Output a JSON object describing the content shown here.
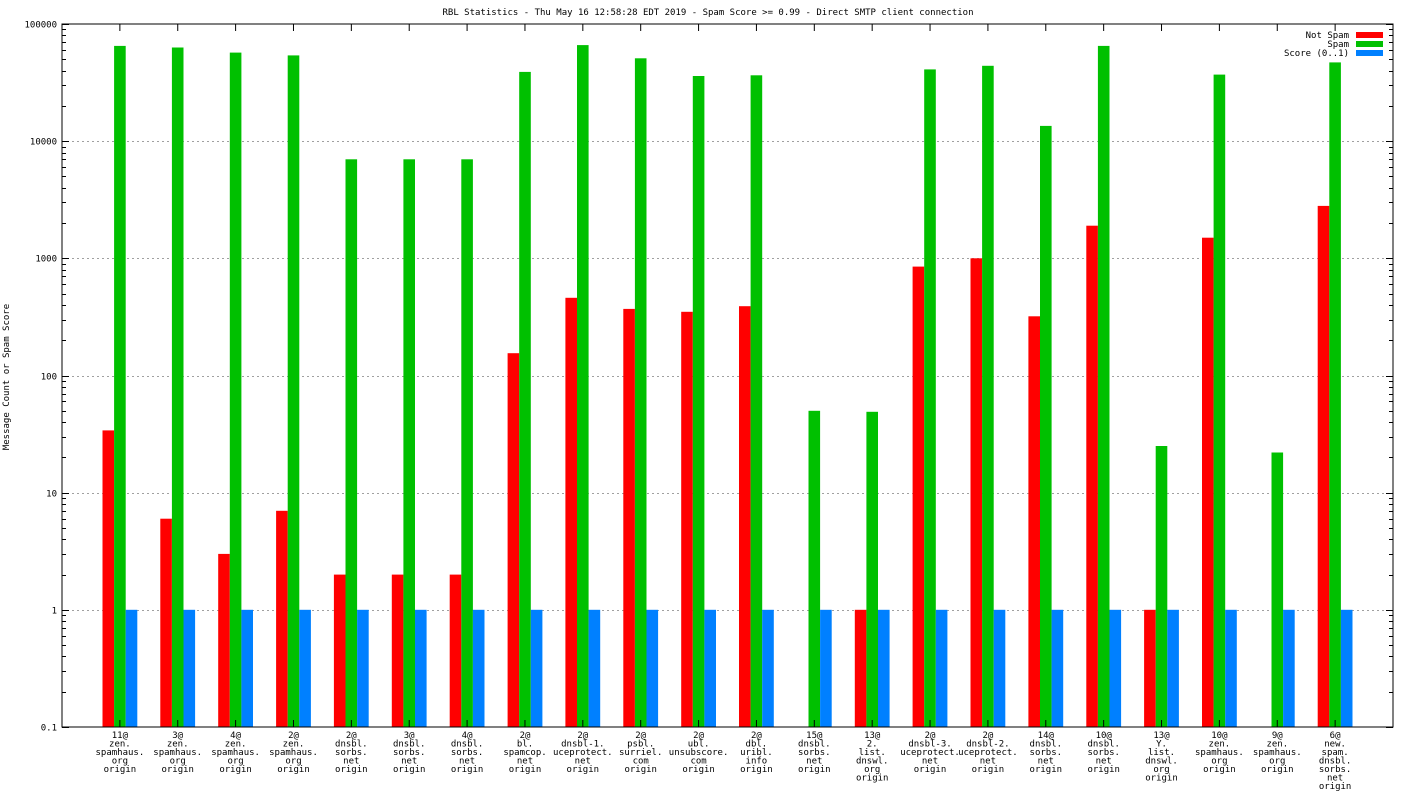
{
  "chart_data": {
    "type": "bar",
    "title": "RBL Statistics - Thu May 16 12:58:28 EDT 2019 - Spam Score >= 0.99 - Direct SMTP client connection",
    "ylabel": "Message Count or Spam Score",
    "xlabel": "",
    "yscale": "log",
    "ylim": [
      0.1,
      100000
    ],
    "yticks": [
      "0.1",
      "1",
      "10",
      "100",
      "1000",
      "10000",
      "100000"
    ],
    "grid": true,
    "legend_position": "top-right",
    "categories": [
      [
        "11@",
        "zen.",
        "spamhaus.",
        "org",
        "origin"
      ],
      [
        "3@",
        "zen.",
        "spamhaus.",
        "org",
        "origin"
      ],
      [
        "4@",
        "zen.",
        "spamhaus.",
        "org",
        "origin"
      ],
      [
        "2@",
        "zen.",
        "spamhaus.",
        "org",
        "origin"
      ],
      [
        "2@",
        "dnsbl.",
        "sorbs.",
        "net",
        "origin"
      ],
      [
        "3@",
        "dnsbl.",
        "sorbs.",
        "net",
        "origin"
      ],
      [
        "4@",
        "dnsbl.",
        "sorbs.",
        "net",
        "origin"
      ],
      [
        "2@",
        "bl.",
        "spamcop.",
        "net",
        "origin"
      ],
      [
        "2@",
        "dnsbl-1.",
        "uceprotect.",
        "net",
        "origin"
      ],
      [
        "2@",
        "psbl.",
        "surriel.",
        "com",
        "origin"
      ],
      [
        "2@",
        "ubl.",
        "unsubscore.",
        "com",
        "origin"
      ],
      [
        "2@",
        "dbl.",
        "uribl.",
        "info",
        "origin"
      ],
      [
        "15@",
        "dnsbl.",
        "sorbs.",
        "net",
        "origin"
      ],
      [
        "13@",
        "2.",
        "list.",
        "dnswl.",
        "org",
        "origin"
      ],
      [
        "2@",
        "dnsbl-3.",
        "uceprotect.",
        "net",
        "origin"
      ],
      [
        "2@",
        "dnsbl-2.",
        "uceprotect.",
        "net",
        "origin"
      ],
      [
        "14@",
        "dnsbl.",
        "sorbs.",
        "net",
        "origin"
      ],
      [
        "10@",
        "dnsbl.",
        "sorbs.",
        "net",
        "origin"
      ],
      [
        "13@",
        "Y.",
        "list.",
        "dnswl.",
        "org",
        "origin"
      ],
      [
        "10@",
        "zen.",
        "spamhaus.",
        "org",
        "origin"
      ],
      [
        "9@",
        "zen.",
        "spamhaus.",
        "org",
        "origin"
      ],
      [
        "6@",
        "new.",
        "spam.",
        "dnsbl.",
        "sorbs.",
        "net",
        "origin"
      ]
    ],
    "series": [
      {
        "name": "Not Spam",
        "color": "#ff0000",
        "values": [
          34,
          6,
          3,
          7,
          2,
          2,
          2,
          155,
          460,
          370,
          350,
          390,
          null,
          1,
          850,
          1000,
          320,
          1900,
          1,
          1500,
          null,
          2800
        ]
      },
      {
        "name": "Spam",
        "color": "#00c000",
        "values": [
          65000,
          63000,
          57000,
          54000,
          7000,
          7000,
          7000,
          39000,
          66000,
          51000,
          36000,
          36500,
          50,
          49,
          41000,
          44000,
          13500,
          65000,
          25,
          37000,
          22,
          47000
        ]
      },
      {
        "name": "Score (0..1)",
        "color": "#0080ff",
        "values": [
          1,
          1,
          1,
          1,
          1,
          1,
          1,
          1,
          1,
          1,
          1,
          1,
          1,
          1,
          1,
          1,
          1,
          1,
          1,
          1,
          1,
          1
        ]
      }
    ]
  }
}
